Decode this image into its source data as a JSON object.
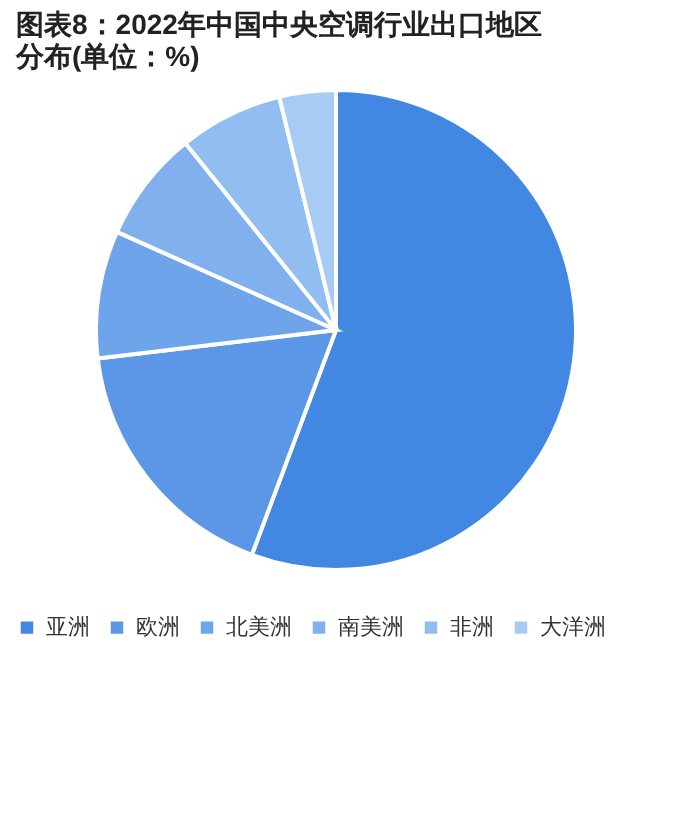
{
  "chart_data": {
    "type": "pie",
    "title": "图表8：2022年中国中央空调行业出口地区分布(单位：%)",
    "categories": [
      "亚洲",
      "欧洲",
      "北美洲",
      "南美洲",
      "非洲",
      "大洋洲"
    ],
    "values": [
      55.7,
      17.4,
      8.6,
      7.5,
      7.0,
      3.8
    ],
    "colors": [
      "#4287e1",
      "#5b97e6",
      "#6ea5ea",
      "#80b1ee",
      "#91bdf1",
      "#a7cbf5"
    ],
    "legend": "bottom"
  }
}
